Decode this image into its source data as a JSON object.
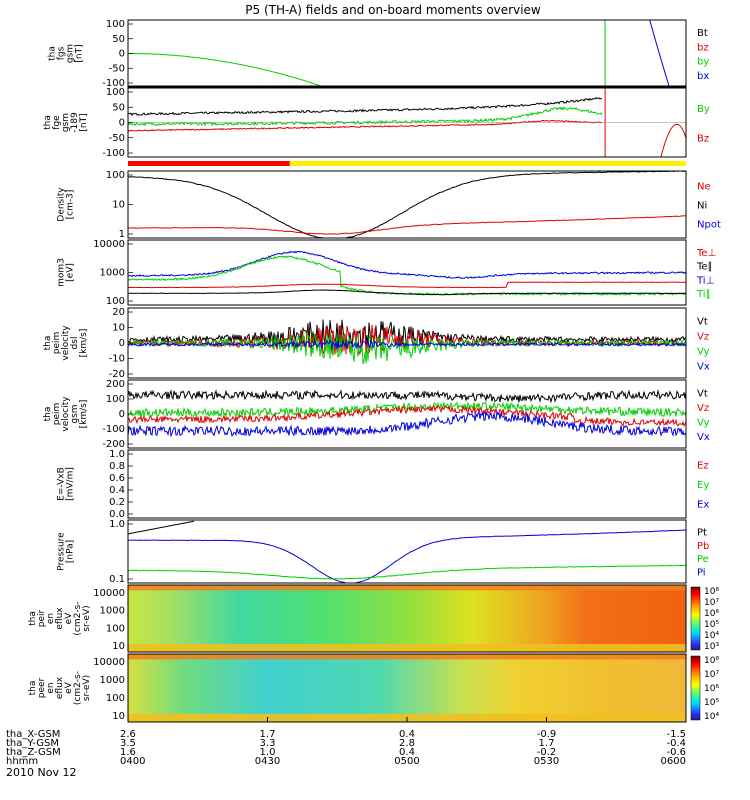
{
  "title": "P5 (TH-A) fields and on-board moments overview",
  "date": "2010 Nov 12",
  "colors": {
    "black": "#000000",
    "red": "#e00000",
    "green": "#00d000",
    "blue": "#0000dd",
    "yellow": "#ffee00"
  },
  "chart_data": {
    "type": "line",
    "x_ticks": [
      "0400",
      "0430",
      "0500",
      "0530",
      "0600"
    ],
    "x_axis_rows": [
      {
        "label": "tha_X-GSM",
        "values": [
          "2.6",
          "1.7",
          "0.4",
          "-0.9",
          "-1.5"
        ]
      },
      {
        "label": "tha_Y-GSM",
        "values": [
          "3.5",
          "3.3",
          "2.8",
          "1.7",
          "-0.4"
        ]
      },
      {
        "label": "tha_Z-GSM",
        "values": [
          "1.6",
          "1.0",
          "0.4",
          "-0.2",
          "-0.6"
        ]
      },
      {
        "label": "hhmm",
        "values": [
          "0400",
          "0430",
          "0500",
          "0530",
          "0600"
        ]
      }
    ],
    "panels": [
      {
        "id": "p1",
        "ylabel": [
          "tha",
          "fgs",
          "gsm",
          "[nT]"
        ],
        "yticks": [
          "100",
          "50",
          "0",
          "-50",
          "-100"
        ],
        "ylim": [
          -100,
          100
        ],
        "legend": [
          {
            "text": "Bt",
            "color": "#000000"
          },
          {
            "text": "bz",
            "color": "#e00000"
          },
          {
            "text": "by",
            "color": "#00d000"
          },
          {
            "text": "bx",
            "color": "#0000dd"
          }
        ]
      },
      {
        "id": "p2",
        "ylabel": [
          "tha",
          "fge",
          "gsm",
          "-189",
          "[nT]"
        ],
        "yticks": [
          "100",
          "50",
          "0",
          "-50",
          "-100"
        ],
        "ylim": [
          -120,
          120
        ],
        "legend": [
          {
            "text": "By",
            "color": "#00d000"
          },
          {
            "text": "Bz",
            "color": "#e00000"
          }
        ]
      },
      {
        "id": "p3",
        "ylabel": [
          "Density",
          "[cm-3]"
        ],
        "yticks": [
          "100",
          "10",
          "1"
        ],
        "log": true,
        "legend": [
          {
            "text": "Ne",
            "color": "#e00000"
          },
          {
            "text": "Ni",
            "color": "#000000"
          },
          {
            "text": "Npot",
            "color": "#0000dd"
          }
        ]
      },
      {
        "id": "p4",
        "ylabel": [
          "mom3",
          "[eV]"
        ],
        "yticks": [
          "10000",
          "1000",
          "100"
        ],
        "log": true,
        "legend": [
          {
            "text": "Te⊥",
            "color": "#e00000"
          },
          {
            "text": "Te∥",
            "color": "#000000"
          },
          {
            "text": "Ti⊥",
            "color": "#0000dd"
          },
          {
            "text": "Ti∥",
            "color": "#00d000"
          }
        ]
      },
      {
        "id": "p5",
        "ylabel": [
          "tha",
          "peim",
          "velocity",
          "dsl",
          "[km/s]"
        ],
        "yticks": [
          "20",
          "10",
          "0",
          "-10",
          "-20"
        ],
        "ylim": [
          -20,
          20
        ],
        "legend": [
          {
            "text": "Vt",
            "color": "#000000"
          },
          {
            "text": "Vz",
            "color": "#e00000"
          },
          {
            "text": "Vy",
            "color": "#00d000"
          },
          {
            "text": "Vx",
            "color": "#0000dd"
          }
        ]
      },
      {
        "id": "p6",
        "ylabel": [
          "tha",
          "peim",
          "velocity",
          "gsm",
          "[km/s]"
        ],
        "yticks": [
          "200",
          "100",
          "0",
          "-100",
          "-200"
        ],
        "ylim": [
          -200,
          200
        ],
        "legend": [
          {
            "text": "Vt",
            "color": "#000000"
          },
          {
            "text": "Vz",
            "color": "#e00000"
          },
          {
            "text": "Vy",
            "color": "#00d000"
          },
          {
            "text": "Vx",
            "color": "#0000dd"
          }
        ]
      },
      {
        "id": "p7",
        "ylabel": [
          "E=-VxB",
          "[mV/m]"
        ],
        "yticks": [
          "1.0",
          "0.8",
          "0.6",
          "0.4",
          "0.2",
          "0.0"
        ],
        "ylim": [
          0,
          1
        ],
        "legend": [
          {
            "text": "Ez",
            "color": "#e00000"
          },
          {
            "text": "Ey",
            "color": "#00d000"
          },
          {
            "text": "Ex",
            "color": "#0000dd"
          }
        ]
      },
      {
        "id": "p8",
        "ylabel": [
          "Pressure",
          "[nPa]"
        ],
        "yticks": [
          "1.0",
          "0.1"
        ],
        "log": true,
        "legend": [
          {
            "text": "Pt",
            "color": "#000000"
          },
          {
            "text": "Pb",
            "color": "#e00000"
          },
          {
            "text": "Pe",
            "color": "#00d000"
          },
          {
            "text": "Pi",
            "color": "#0000dd"
          }
        ]
      },
      {
        "id": "p9",
        "type": "heatmap",
        "ylabel": [
          "tha",
          "peir",
          "en",
          "eflux",
          "eV",
          "(cm2-s-",
          "sr-eV)"
        ],
        "yticks": [
          "10000",
          "1000",
          "100",
          "10"
        ],
        "colorbar": [
          "10⁸",
          "10⁷",
          "10⁶",
          "10⁵",
          "10⁴",
          "10³"
        ]
      },
      {
        "id": "p10",
        "type": "heatmap",
        "ylabel": [
          "tha",
          "peer",
          "en",
          "eflux",
          "eV",
          "(cm2-s-",
          "sr-eV)"
        ],
        "yticks": [
          "10000",
          "1000",
          "100",
          "10"
        ],
        "colorbar": [
          "10⁸",
          "10⁷",
          "10⁶",
          "10⁵",
          "10⁴"
        ]
      }
    ]
  }
}
